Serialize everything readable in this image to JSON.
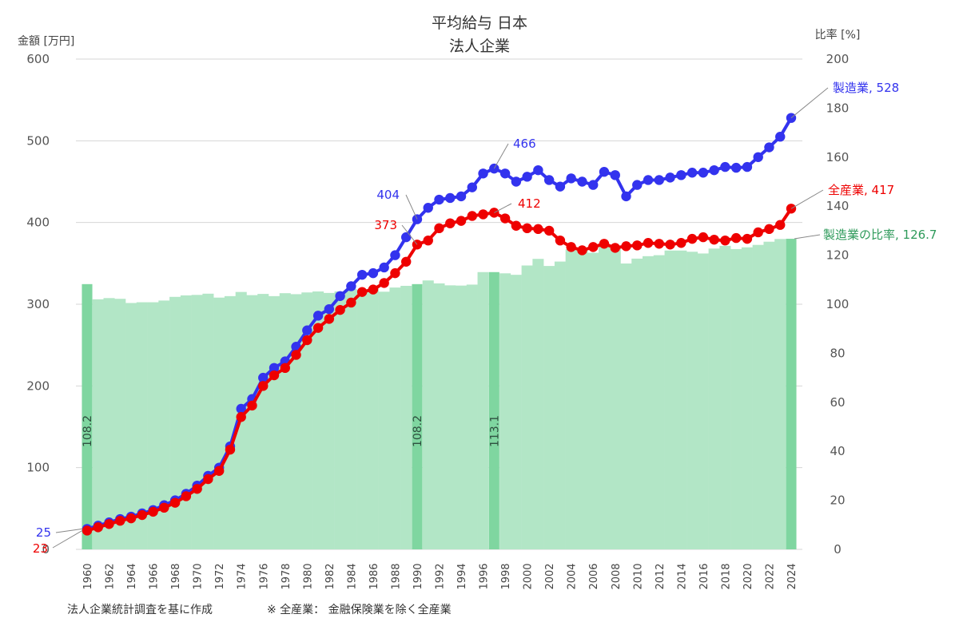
{
  "chart_data": {
    "type": "line",
    "title": "平均給与 日本",
    "subtitle": "法人企業",
    "yleft_label": "金額 [万円]",
    "yright_label": "比率 [%]",
    "ylim_left": [
      0,
      600
    ],
    "ylim_right": [
      0,
      200
    ],
    "yticks_left": [
      "0",
      "100",
      "200",
      "300",
      "400",
      "500",
      "600"
    ],
    "yticks_right": [
      "0",
      "20",
      "40",
      "60",
      "80",
      "100",
      "120",
      "140",
      "160",
      "180",
      "200"
    ],
    "x": [
      1960,
      1961,
      1962,
      1963,
      1964,
      1965,
      1966,
      1967,
      1968,
      1969,
      1970,
      1971,
      1972,
      1973,
      1974,
      1975,
      1976,
      1977,
      1978,
      1979,
      1980,
      1981,
      1982,
      1983,
      1984,
      1985,
      1986,
      1987,
      1988,
      1989,
      1990,
      1991,
      1992,
      1993,
      1994,
      1995,
      1996,
      1997,
      1998,
      1999,
      2000,
      2001,
      2002,
      2003,
      2004,
      2005,
      2006,
      2007,
      2008,
      2009,
      2010,
      2011,
      2012,
      2013,
      2014,
      2015,
      2016,
      2017,
      2018,
      2019,
      2020,
      2021,
      2022,
      2023,
      2024
    ],
    "xtick_labels": [
      "1960",
      "1962",
      "1964",
      "1966",
      "1968",
      "1970",
      "1972",
      "1974",
      "1976",
      "1978",
      "1980",
      "1982",
      "1984",
      "1986",
      "1988",
      "1990",
      "1992",
      "1994",
      "1996",
      "1998",
      "2000",
      "2002",
      "2004",
      "2006",
      "2008",
      "2010",
      "2012",
      "2014",
      "2016",
      "2018",
      "2020",
      "2022",
      "2024"
    ],
    "grid": true,
    "series": [
      {
        "name": "製造業",
        "axis": "left",
        "color": "#3333ee",
        "values": [
          25,
          29,
          33,
          37,
          40,
          44,
          48,
          54,
          60,
          68,
          78,
          90,
          100,
          126,
          172,
          184,
          210,
          222,
          230,
          248,
          268,
          286,
          294,
          310,
          322,
          336,
          338,
          345,
          360,
          382,
          404,
          418,
          428,
          430,
          432,
          443,
          460,
          466,
          460,
          450,
          456,
          464,
          452,
          444,
          454,
          450,
          446,
          462,
          458,
          432,
          446,
          452,
          452,
          455,
          458,
          461,
          461,
          464,
          468,
          467,
          468,
          480,
          492,
          505,
          528
        ]
      },
      {
        "name": "全産業",
        "axis": "left",
        "color": "#ee0000",
        "values": [
          23,
          27,
          31,
          35,
          38,
          42,
          46,
          51,
          57,
          65,
          74,
          86,
          96,
          122,
          162,
          176,
          200,
          213,
          222,
          238,
          256,
          271,
          282,
          293,
          302,
          315,
          318,
          326,
          338,
          352,
          373,
          378,
          393,
          399,
          402,
          408,
          410,
          412,
          405,
          396,
          393,
          392,
          390,
          378,
          370,
          366,
          370,
          374,
          369,
          371,
          372,
          375,
          374,
          373,
          375,
          380,
          382,
          379,
          378,
          381,
          380,
          388,
          392,
          397,
          417
        ]
      },
      {
        "name": "製造業の比率",
        "axis": "right",
        "type": "bar",
        "color": "#b2e6c6",
        "values": [
          108.2,
          102.0,
          102.5,
          102.2,
          100.5,
          100.8,
          100.8,
          101.5,
          103.0,
          103.6,
          103.8,
          104.3,
          102.7,
          103.3,
          105.0,
          103.7,
          104.2,
          103.3,
          104.5,
          104.1,
          104.8,
          105.2,
          104.6,
          105.2,
          106.2,
          105.8,
          106.5,
          105.1,
          106.8,
          107.5,
          108.2,
          109.7,
          108.5,
          107.7,
          107.6,
          108.0,
          113.1,
          113.1,
          112.6,
          112.0,
          115.8,
          118.5,
          115.6,
          117.4,
          122.4,
          123.0,
          121.0,
          123.8,
          122.8,
          116.6,
          118.6,
          119.6,
          120.0,
          121.9,
          121.9,
          121.4,
          120.7,
          122.7,
          123.8,
          122.5,
          123.2,
          124.2,
          125.5,
          126.6,
          126.7
        ]
      }
    ],
    "highlighted_bars": [
      {
        "year": 1960,
        "label": "108.2"
      },
      {
        "year": 1990,
        "label": "108.2"
      },
      {
        "year": 1997,
        "label": "113.1"
      },
      {
        "year": 2024,
        "label": ""
      }
    ],
    "annotations": {
      "blue_1960": "25",
      "red_1960": "23",
      "blue_1990": "404",
      "red_1990": "373",
      "blue_peak": "466",
      "red_peak": "412",
      "blue_end": "製造業, 528",
      "red_end": "全産業, 417",
      "ratio_end": "製造業の比率, 126.7"
    },
    "footnote_left": "法人企業統計調査を基に作成",
    "footnote_right": "※ 全産業：  金融保険業を除く全産業"
  }
}
